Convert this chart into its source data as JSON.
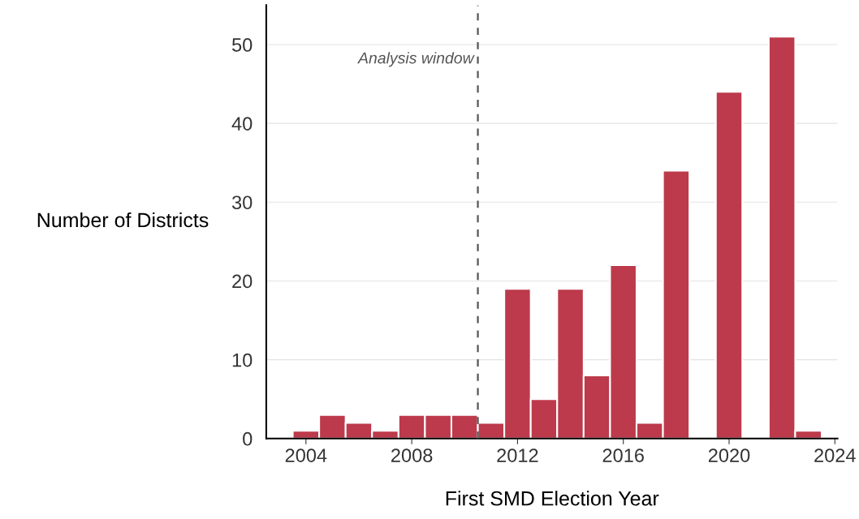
{
  "chart_data": {
    "type": "histogram",
    "xlabel": "First SMD Election Year",
    "ylabel": "Number of Districts",
    "bins": [
      2003.5,
      2004.5,
      2005.5,
      2006.5,
      2007.5,
      2008.5,
      2009.5,
      2010.5,
      2011.5,
      2012.5,
      2013.5,
      2014.5,
      2015.5,
      2016.5,
      2017.5,
      2018.5,
      2019.5,
      2020.5,
      2021.5,
      2022.5,
      2023.5
    ],
    "values": [
      1,
      3,
      2,
      1,
      3,
      3,
      3,
      2,
      19,
      5,
      19,
      8,
      22,
      2,
      34,
      0,
      44,
      0,
      51,
      1
    ],
    "color": "#bc3a4b",
    "xlim": [
      2002.5,
      2024.1
    ],
    "xticks": [
      2004,
      2008,
      2012,
      2016,
      2020,
      2024
    ],
    "ylim": [
      0,
      55
    ],
    "yticks": [
      0,
      10,
      20,
      30,
      40,
      50
    ],
    "grid": "y",
    "ref_lines": [
      {
        "axis": "x",
        "value": 2010.5,
        "label": "Analysis window",
        "color": "#555555",
        "line_style": "dashed"
      }
    ]
  }
}
